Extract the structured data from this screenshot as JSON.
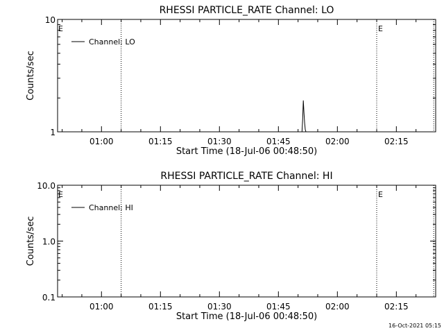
{
  "footer": {
    "timestamp": "16-Oct-2021 05:15"
  },
  "chart_data": [
    {
      "type": "line",
      "title": "RHESSI PARTICLE_RATE Channel: LO",
      "xlabel": "Start Time (18-Jul-06 00:48:50)",
      "ylabel": "Counts/sec",
      "y_scale": "log",
      "ylim": [
        1,
        10
      ],
      "y_ticks": [
        {
          "value": 1,
          "label": "1"
        },
        {
          "value": 10,
          "label": "10"
        }
      ],
      "xlim": [
        "00:48:50",
        "02:25:00"
      ],
      "x_ticks": [
        "01:00",
        "01:15",
        "01:30",
        "01:45",
        "02:00",
        "02:15"
      ],
      "legend": {
        "position": "top-left",
        "entries": [
          "Channel: LO"
        ]
      },
      "series": [
        {
          "name": "Channel: LO",
          "x": [
            "01:51:00",
            "01:51:10",
            "01:51:20",
            "01:51:30",
            "01:51:40",
            "01:51:50",
            "01:52:00"
          ],
          "y": [
            1,
            1.3,
            1.9,
            1.5,
            1.2,
            1.05,
            1
          ]
        }
      ],
      "vertical_lines": [
        {
          "x": "01:05:00",
          "label": ""
        },
        {
          "x": "02:10:00",
          "label": "E"
        },
        {
          "x": "02:24:30",
          "label": ""
        }
      ],
      "corner_label": "E"
    },
    {
      "type": "line",
      "title": "RHESSI PARTICLE_RATE Channel: HI",
      "xlabel": "Start Time (18-Jul-06 00:48:50)",
      "ylabel": "Counts/sec",
      "y_scale": "log",
      "ylim": [
        0.1,
        10
      ],
      "y_ticks": [
        {
          "value": 0.1,
          "label": "0.1"
        },
        {
          "value": 1,
          "label": "1.0"
        },
        {
          "value": 10,
          "label": "10.0"
        }
      ],
      "xlim": [
        "00:48:50",
        "02:25:00"
      ],
      "x_ticks": [
        "01:00",
        "01:15",
        "01:30",
        "01:45",
        "02:00",
        "02:15"
      ],
      "legend": {
        "position": "top-left",
        "entries": [
          "Channel: HI"
        ]
      },
      "series": [
        {
          "name": "Channel: HI",
          "x": [],
          "y": []
        }
      ],
      "vertical_lines": [
        {
          "x": "01:05:00",
          "label": ""
        },
        {
          "x": "02:10:00",
          "label": "E"
        },
        {
          "x": "02:24:30",
          "label": ""
        }
      ],
      "corner_label": "E"
    }
  ]
}
